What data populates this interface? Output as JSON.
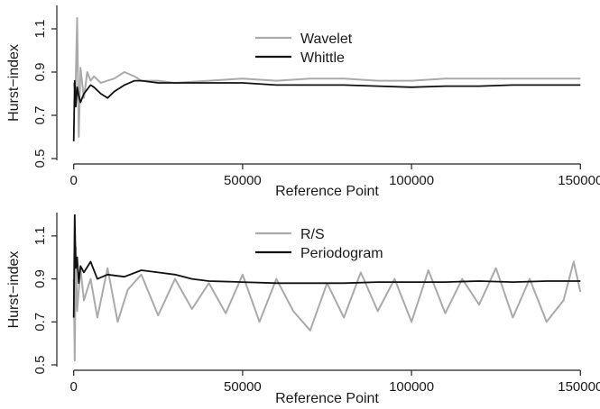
{
  "chart_data": [
    {
      "type": "line",
      "xlabel": "Reference Point",
      "ylabel": "Hurst−index",
      "xlim": [
        -5000,
        155000
      ],
      "ylim": [
        0.5,
        1.2
      ],
      "xticks": [
        0,
        50000,
        100000,
        150000
      ],
      "xtick_labels": [
        "0",
        "50000",
        "100000",
        "150000"
      ],
      "yticks": [
        0.5,
        0.7,
        0.9,
        1.1
      ],
      "ytick_labels": [
        "0.5",
        "0.7",
        "0.9",
        "1.1"
      ],
      "grid": false,
      "legend": "top-center",
      "series": [
        {
          "name": "Wavelet",
          "color": "#aaaaaa",
          "x": [
            0,
            500,
            1000,
            1500,
            2000,
            3000,
            4000,
            5000,
            6000,
            8000,
            10000,
            12000,
            15000,
            18000,
            20000,
            25000,
            30000,
            40000,
            50000,
            60000,
            70000,
            80000,
            90000,
            100000,
            110000,
            120000,
            130000,
            140000,
            150000
          ],
          "y": [
            0.85,
            0.8,
            1.15,
            0.6,
            0.92,
            0.78,
            0.9,
            0.86,
            0.88,
            0.85,
            0.86,
            0.87,
            0.9,
            0.88,
            0.86,
            0.86,
            0.85,
            0.86,
            0.87,
            0.86,
            0.87,
            0.87,
            0.86,
            0.86,
            0.87,
            0.87,
            0.87,
            0.87,
            0.87
          ]
        },
        {
          "name": "Whittle",
          "color": "#111111",
          "x": [
            0,
            300,
            600,
            1000,
            1500,
            2000,
            3000,
            4000,
            5000,
            6000,
            8000,
            10000,
            12000,
            15000,
            18000,
            20000,
            25000,
            30000,
            40000,
            50000,
            60000,
            70000,
            80000,
            90000,
            100000,
            110000,
            120000,
            130000,
            140000,
            150000
          ],
          "y": [
            0.58,
            0.86,
            0.74,
            0.83,
            0.79,
            0.76,
            0.8,
            0.82,
            0.84,
            0.83,
            0.8,
            0.78,
            0.81,
            0.84,
            0.86,
            0.86,
            0.85,
            0.85,
            0.85,
            0.85,
            0.84,
            0.84,
            0.84,
            0.835,
            0.83,
            0.835,
            0.835,
            0.84,
            0.84,
            0.84
          ]
        }
      ]
    },
    {
      "type": "line",
      "xlabel": "Reference Point",
      "ylabel": "Hurst−index",
      "xlim": [
        -5000,
        155000
      ],
      "ylim": [
        0.5,
        1.2
      ],
      "xticks": [
        0,
        50000,
        100000,
        150000
      ],
      "xtick_labels": [
        "0",
        "50000",
        "100000",
        "150000"
      ],
      "yticks": [
        0.5,
        0.7,
        0.9,
        1.1
      ],
      "ytick_labels": [
        "0.5",
        "0.7",
        "0.9",
        "1.1"
      ],
      "grid": false,
      "legend": "top-center",
      "series": [
        {
          "name": "R/S",
          "color": "#aaaaaa",
          "x": [
            0,
            300,
            600,
            1000,
            2000,
            3000,
            5000,
            7000,
            10000,
            13000,
            16000,
            20000,
            25000,
            30000,
            35000,
            40000,
            45000,
            50000,
            55000,
            60000,
            65000,
            70000,
            75000,
            80000,
            85000,
            90000,
            95000,
            100000,
            105000,
            110000,
            115000,
            120000,
            125000,
            130000,
            135000,
            140000,
            145000,
            148000,
            150000
          ],
          "y": [
            0.9,
            0.52,
            1.05,
            0.75,
            0.95,
            0.8,
            0.9,
            0.72,
            0.95,
            0.7,
            0.85,
            0.92,
            0.73,
            0.9,
            0.76,
            0.88,
            0.74,
            0.92,
            0.7,
            0.9,
            0.75,
            0.66,
            0.88,
            0.72,
            0.93,
            0.75,
            0.9,
            0.7,
            0.94,
            0.74,
            0.9,
            0.78,
            0.95,
            0.72,
            0.9,
            0.7,
            0.8,
            0.98,
            0.84
          ]
        },
        {
          "name": "Periodogram",
          "color": "#111111",
          "x": [
            0,
            300,
            600,
            1000,
            1500,
            2000,
            3000,
            5000,
            7000,
            10000,
            15000,
            20000,
            25000,
            30000,
            35000,
            40000,
            50000,
            60000,
            70000,
            80000,
            90000,
            100000,
            110000,
            120000,
            130000,
            140000,
            150000
          ],
          "y": [
            0.72,
            1.2,
            0.95,
            1.0,
            0.88,
            0.96,
            0.93,
            0.98,
            0.9,
            0.92,
            0.91,
            0.94,
            0.93,
            0.92,
            0.9,
            0.89,
            0.885,
            0.88,
            0.88,
            0.88,
            0.885,
            0.885,
            0.885,
            0.89,
            0.885,
            0.89,
            0.89
          ]
        }
      ]
    }
  ]
}
